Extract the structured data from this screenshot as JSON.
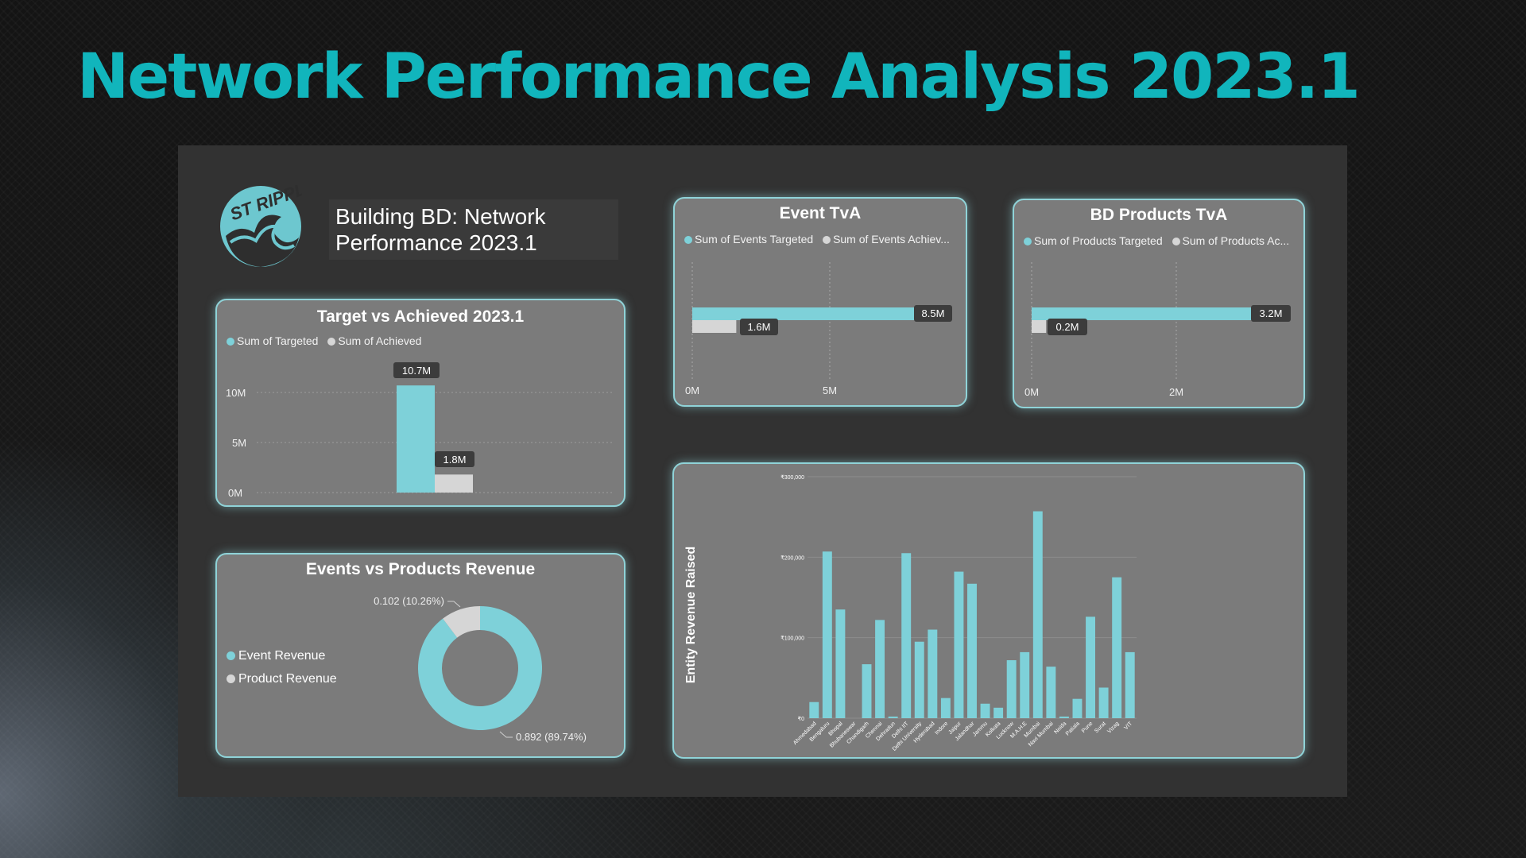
{
  "page": {
    "title": "Network Performance Analysis 2023.1"
  },
  "header": {
    "logo_text": "ST RIPPLE",
    "title": "Building BD: Network Performance 2023.1"
  },
  "colors": {
    "title": "#11b5bc",
    "targeted": "#7ed1d9",
    "achieved": "#d6d6d6",
    "card_bg": "#7b7b7b",
    "card_border": "#8fd3d8",
    "dashboard_bg": "#323232"
  },
  "target_vs_achieved": {
    "title": "Target vs Achieved 2023.1",
    "legend": [
      "Sum of Targeted",
      "Sum of Achieved"
    ],
    "y_ticks": [
      "0M",
      "5M",
      "10M"
    ],
    "labels": [
      "10.7M",
      "1.8M"
    ]
  },
  "event_tva": {
    "title": "Event TvA",
    "legend": [
      "Sum of Events Targeted",
      "Sum of Events Achiev..."
    ],
    "x_ticks": [
      "0M",
      "5M"
    ],
    "labels": [
      "8.5M",
      "1.6M"
    ]
  },
  "bd_products_tva": {
    "title": "BD Products TvA",
    "legend": [
      "Sum of Products Targeted",
      "Sum of Products Ac..."
    ],
    "x_ticks": [
      "0M",
      "2M"
    ],
    "labels": [
      "3.2M",
      "0.2M"
    ]
  },
  "revenue_split": {
    "title": "Events vs Products Revenue",
    "legend": [
      "Event Revenue",
      "Product Revenue"
    ],
    "labels": [
      "0.892 (89.74%)",
      "0.102 (10.26%)"
    ]
  },
  "entity_revenue": {
    "ylabel": "Entity Revenue Raised",
    "y_ticks": [
      "₹0",
      "₹100,000",
      "₹200,000",
      "₹300,000"
    ]
  },
  "chart_data": [
    {
      "type": "bar",
      "title": "Target vs Achieved 2023.1",
      "categories": [
        ""
      ],
      "series": [
        {
          "name": "Sum of Targeted",
          "values": [
            10.7
          ]
        },
        {
          "name": "Sum of Achieved",
          "values": [
            1.8
          ]
        }
      ],
      "unit": "M",
      "ylim": [
        0,
        11
      ],
      "grid": true,
      "legend": "top-left"
    },
    {
      "type": "bar",
      "orientation": "horizontal",
      "title": "Event TvA",
      "series": [
        {
          "name": "Sum of Events Targeted",
          "values": [
            8.5
          ]
        },
        {
          "name": "Sum of Events Achiev...",
          "values": [
            1.6
          ]
        }
      ],
      "unit": "M",
      "xlim": [
        0,
        10
      ],
      "grid": true,
      "legend": "top-left"
    },
    {
      "type": "bar",
      "orientation": "horizontal",
      "title": "BD Products TvA",
      "series": [
        {
          "name": "Sum of Products Targeted",
          "values": [
            3.2
          ]
        },
        {
          "name": "Sum of Products Ac...",
          "values": [
            0.2
          ]
        }
      ],
      "unit": "M",
      "xlim": [
        0,
        4
      ],
      "grid": true,
      "legend": "top-left"
    },
    {
      "type": "pie",
      "donut": true,
      "title": "Events vs Products Revenue",
      "categories": [
        "Event Revenue",
        "Product Revenue"
      ],
      "values": [
        0.892,
        0.102
      ],
      "percent": [
        89.74,
        10.26
      ],
      "legend": "left"
    },
    {
      "type": "bar",
      "ylabel": "Entity Revenue Raised",
      "categories": [
        "Ahmedabad",
        "Bengaluru",
        "Bhopal",
        "Bhubaneswar",
        "Chandigarh",
        "Chennai",
        "Dehradun",
        "Delhi IIT",
        "Delhi University",
        "Hyderabad",
        "Indore",
        "Jaipur",
        "Jalandhar",
        "Jammu",
        "Kolkata",
        "Lucknow",
        "M.A.H.E",
        "Mumbai",
        "Navi Mumbai",
        "Noida",
        "Patiala",
        "Pune",
        "Surat",
        "Vizag",
        "VIT"
      ],
      "values": [
        20000,
        207000,
        135000,
        0,
        67000,
        122000,
        2000,
        205000,
        95000,
        110000,
        25000,
        182000,
        167000,
        18000,
        13000,
        72000,
        82000,
        257000,
        64000,
        2000,
        24000,
        126000,
        38000,
        175000,
        82000
      ],
      "ylim": [
        0,
        300000
      ],
      "grid": true
    }
  ]
}
